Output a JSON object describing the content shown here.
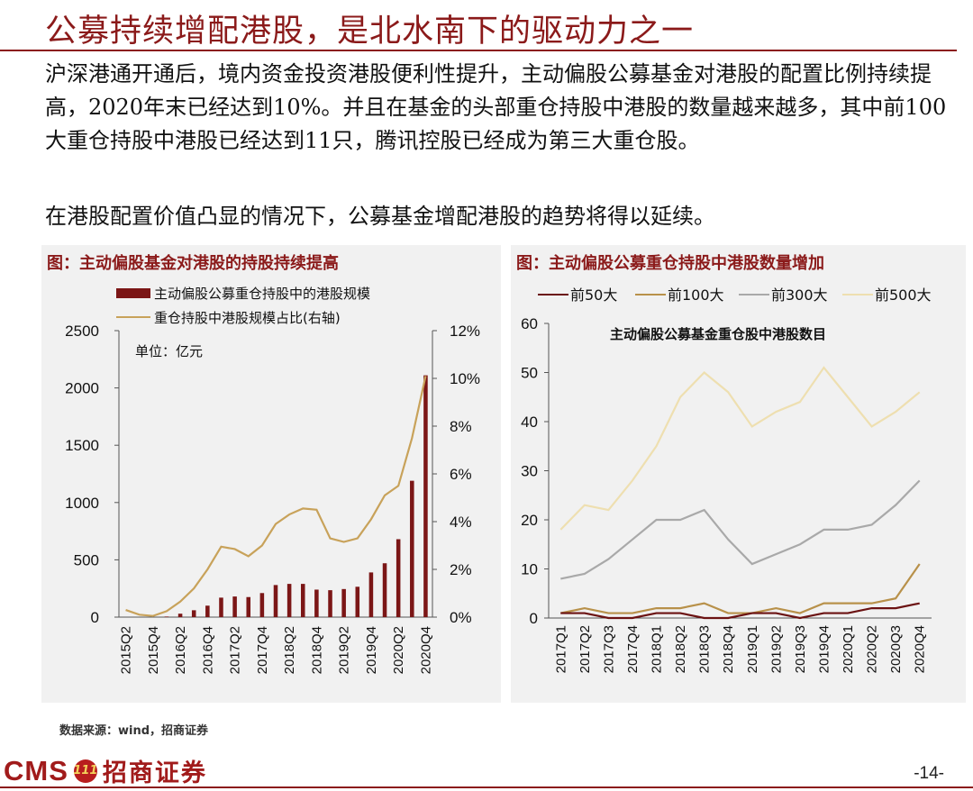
{
  "slide": {
    "title": "公募持续增配港股，是北水南下的驱动力之一",
    "paragraph1": "沪深港通开通后，境内资金投资港股便利性提升，主动偏股公募基金对港股的配置比例持续提高，2020年末已经达到10%。并且在基金的头部重仓持股中港股的数量越来越多，其中前100大重仓持股中港股已经达到11只，腾讯控股已经成为第三大重仓股。",
    "paragraph2": "在港股配置价值凸显的情况下，公募基金增配港股的趋势将得以延续。",
    "source": "数据来源：wind，招商证券",
    "logo_text": "CMS",
    "logo_badge": "111",
    "logo_name": "招商证券",
    "page_number": "-14-"
  },
  "colors": {
    "accent": "#8b1a1a",
    "bar": "#7b1616",
    "line_gold": "#c8a25a",
    "panel_bg": "#f1f1f1"
  },
  "chart_data": [
    {
      "type": "bar",
      "panel_title": "图：主动偏股基金对港股的持股持续提高",
      "unit_label": "单位：亿元",
      "categories": [
        "2015Q2",
        "2015Q3",
        "2015Q4",
        "2016Q1",
        "2016Q2",
        "2016Q3",
        "2016Q4",
        "2017Q1",
        "2017Q2",
        "2017Q3",
        "2017Q4",
        "2018Q1",
        "2018Q2",
        "2018Q3",
        "2018Q4",
        "2019Q1",
        "2019Q2",
        "2019Q3",
        "2019Q4",
        "2020Q1",
        "2020Q2",
        "2020Q3",
        "2020Q4"
      ],
      "x_tick_labels": [
        "2015Q2",
        "",
        "2015Q4",
        "",
        "2016Q2",
        "",
        "2016Q4",
        "",
        "2017Q2",
        "",
        "2017Q4",
        "",
        "2018Q2",
        "",
        "2018Q4",
        "",
        "2019Q2",
        "",
        "2019Q4",
        "",
        "2020Q2",
        "",
        "2020Q4"
      ],
      "series": [
        {
          "name": "主动偏股公募重仓持股中的港股规模",
          "kind": "bar",
          "axis": "left",
          "values": [
            0,
            0,
            0,
            5,
            30,
            60,
            100,
            170,
            180,
            175,
            210,
            280,
            290,
            290,
            240,
            235,
            245,
            265,
            390,
            470,
            680,
            1190,
            2110
          ]
        },
        {
          "name": "重仓持股中港股规模占比(右轴)",
          "kind": "line",
          "axis": "right",
          "values": [
            0.3,
            0.1,
            0.05,
            0.25,
            0.65,
            1.2,
            2.0,
            2.95,
            2.85,
            2.55,
            3.0,
            3.9,
            4.3,
            4.55,
            4.5,
            3.3,
            3.15,
            3.3,
            4.1,
            5.1,
            5.5,
            7.5,
            10.1
          ]
        }
      ],
      "y_left": {
        "ylim": [
          0,
          2500
        ],
        "ticks": [
          "0",
          "500",
          "1000",
          "1500",
          "2000",
          "2500"
        ],
        "tick_values": [
          0,
          500,
          1000,
          1500,
          2000,
          2500
        ]
      },
      "y_right": {
        "ylim": [
          0,
          12
        ],
        "ticks": [
          "0%",
          "2%",
          "4%",
          "6%",
          "8%",
          "10%",
          "12%"
        ],
        "tick_values": [
          0,
          2,
          4,
          6,
          8,
          10,
          12
        ]
      },
      "legend_position": "top",
      "grid": false
    },
    {
      "type": "line",
      "panel_title": "图：主动偏股公募重仓持股中港股数量增加",
      "title": "主动偏股公募基金重仓股中港股数目",
      "categories": [
        "2017Q1",
        "2017Q2",
        "2017Q3",
        "2017Q4",
        "2018Q1",
        "2018Q2",
        "2018Q3",
        "2018Q4",
        "2019Q1",
        "2019Q2",
        "2019Q3",
        "2019Q4",
        "2020Q1",
        "2020Q2",
        "2020Q3",
        "2020Q4"
      ],
      "series": [
        {
          "name": "前50大",
          "color": "#6b1212",
          "values": [
            1,
            1,
            0,
            0,
            1,
            1,
            0,
            0,
            1,
            1,
            0,
            1,
            1,
            2,
            2,
            3
          ]
        },
        {
          "name": "前100大",
          "color": "#b8914a",
          "values": [
            1,
            2,
            1,
            1,
            2,
            2,
            3,
            1,
            1,
            2,
            1,
            3,
            3,
            3,
            4,
            11
          ]
        },
        {
          "name": "前300大",
          "color": "#a9a9a9",
          "values": [
            8,
            9,
            12,
            16,
            20,
            20,
            22,
            16,
            11,
            13,
            15,
            18,
            18,
            19,
            23,
            28
          ]
        },
        {
          "name": "前500大",
          "color": "#eedfb0",
          "values": [
            18,
            23,
            22,
            28,
            35,
            45,
            50,
            46,
            39,
            42,
            44,
            51,
            45,
            39,
            42,
            46
          ]
        }
      ],
      "ylim": [
        0,
        60
      ],
      "y_ticks": [
        "0",
        "10",
        "20",
        "30",
        "40",
        "50",
        "60"
      ],
      "y_tick_values": [
        0,
        10,
        20,
        30,
        40,
        50,
        60
      ],
      "legend_position": "top",
      "grid": false
    }
  ]
}
